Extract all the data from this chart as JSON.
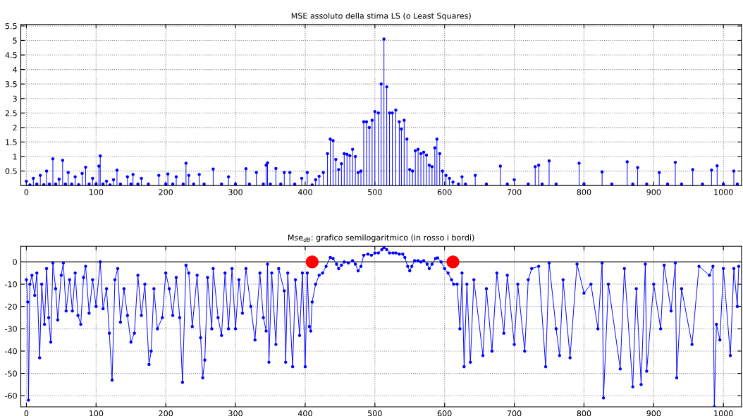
{
  "chart_data": [
    {
      "type": "lollipop",
      "title": "MSE assoluto della stima LS (o Least Squares)",
      "xlim": [
        -8,
        1026
      ],
      "ylim": [
        0,
        5.55
      ],
      "xticks": [
        0,
        100,
        200,
        300,
        400,
        500,
        600,
        700,
        800,
        900,
        1000
      ],
      "yticks": [
        0.5,
        1,
        1.5,
        2,
        2.5,
        3,
        3.5,
        4,
        4.5,
        5,
        5.5
      ],
      "grid": true,
      "marker": "circle",
      "series": [
        {
          "color": "#0000ff",
          "x": [
            0,
            5,
            10,
            15,
            20,
            25,
            29,
            33,
            38,
            42,
            47,
            52,
            56,
            60,
            65,
            70,
            75,
            80,
            85,
            90,
            95,
            100,
            104,
            106,
            110,
            115,
            120,
            125,
            130,
            135,
            145,
            150,
            153,
            160,
            165,
            175,
            190,
            200,
            203,
            210,
            215,
            225,
            229,
            233,
            240,
            248,
            255,
            268,
            280,
            290,
            300,
            315,
            320,
            330,
            340,
            344,
            346,
            350,
            358,
            365,
            370,
            378,
            385,
            395,
            403,
            410,
            415,
            420,
            426,
            432,
            436,
            440,
            444,
            448,
            452,
            456,
            460,
            464,
            468,
            472,
            476,
            480,
            484,
            488,
            492,
            496,
            500,
            505,
            509,
            513,
            517,
            521,
            525,
            530,
            535,
            538,
            542,
            546,
            550,
            554,
            558,
            562,
            566,
            570,
            574,
            578,
            582,
            586,
            589,
            593,
            597,
            602,
            607,
            612,
            620,
            625,
            630,
            644,
            660,
            680,
            690,
            700,
            720,
            730,
            735,
            740,
            750,
            760,
            793,
            800,
            826,
            840,
            862,
            870,
            877,
            890,
            908,
            920,
            931,
            940,
            956,
            970,
            983,
            991,
            1000,
            1015,
            1020
          ],
          "values": [
            0.15,
            0.02,
            0.25,
            0.05,
            0.35,
            0.03,
            0.5,
            0.05,
            0.92,
            0.05,
            0.22,
            0.87,
            0.05,
            0.45,
            0.05,
            0.3,
            0.03,
            0.42,
            0.63,
            0.05,
            0.25,
            0.05,
            0.67,
            1.02,
            0.05,
            0.15,
            0.02,
            0.2,
            0.53,
            0.05,
            0.3,
            0.05,
            0.38,
            0.05,
            0.25,
            0.05,
            0.35,
            0.05,
            0.4,
            0.05,
            0.3,
            0.05,
            0.77,
            0.35,
            0.05,
            0.38,
            0.05,
            0.57,
            0.05,
            0.3,
            0.05,
            0.58,
            0.05,
            0.45,
            0.05,
            0.7,
            0.78,
            0.05,
            0.59,
            0.05,
            0.45,
            0.45,
            0.05,
            0.25,
            0.45,
            0.02,
            0.2,
            0.32,
            0.45,
            1.1,
            1.6,
            1.55,
            0.9,
            0.55,
            0.75,
            1.1,
            1.08,
            1.03,
            1.25,
            1.0,
            0.45,
            0.5,
            2.2,
            2.2,
            2.0,
            2.25,
            2.55,
            2.5,
            3.5,
            5.05,
            3.4,
            2.5,
            2.5,
            2.6,
            2.2,
            1.95,
            2.25,
            1.6,
            0.55,
            0.5,
            1.2,
            1.25,
            1.1,
            1.15,
            1.05,
            0.7,
            0.65,
            1.3,
            1.6,
            1.1,
            0.5,
            0.35,
            0.25,
            0.12,
            0.05,
            0.3,
            0.05,
            0.35,
            0.05,
            0.67,
            0.05,
            0.2,
            0.05,
            0.65,
            0.7,
            0.05,
            0.85,
            0.05,
            0.77,
            0.05,
            0.47,
            0.05,
            0.82,
            0.05,
            0.62,
            0.05,
            0.45,
            0.05,
            0.8,
            0.05,
            0.55,
            0.05,
            0.53,
            0.68,
            0.05,
            0.5,
            0.05
          ]
        }
      ]
    },
    {
      "type": "line",
      "title": "Mse$_{dB}$: grafico semilogaritmico (in rosso i bordi)",
      "xlim": [
        -8,
        1026
      ],
      "ylim": [
        -65,
        7
      ],
      "xticks": [
        0,
        100,
        200,
        300,
        400,
        500,
        600,
        700,
        800,
        900,
        1000
      ],
      "yticks": [
        -60,
        -50,
        -40,
        -30,
        -20,
        -10,
        0
      ],
      "grid": true,
      "marker": "circle",
      "line_style": "solid",
      "ref_lines": [
        {
          "axis": "y",
          "value": 0,
          "color": "#555555",
          "line_style": "solid"
        }
      ],
      "series": [
        {
          "color": "#0000ff",
          "x": [
            0,
            2,
            3,
            5,
            8,
            12,
            15,
            19,
            22,
            26,
            29,
            32,
            35,
            38,
            42,
            45,
            50,
            53,
            57,
            62,
            66,
            70,
            74,
            78,
            82,
            85,
            90,
            95,
            100,
            106,
            110,
            115,
            119,
            123,
            127,
            131,
            135,
            140,
            145,
            150,
            155,
            160,
            165,
            170,
            176,
            179,
            183,
            188,
            195,
            200,
            205,
            210,
            215,
            220,
            224,
            229,
            233,
            238,
            245,
            250,
            253,
            256,
            260,
            266,
            268,
            275,
            280,
            285,
            290,
            295,
            300,
            305,
            310,
            315,
            322,
            328,
            335,
            340,
            344,
            346,
            348,
            352,
            358,
            362,
            370,
            372,
            375,
            382,
            386,
            392,
            396,
            400,
            403,
            406,
            408,
            410,
            415,
            420,
            425,
            430,
            436,
            440,
            445,
            448,
            452,
            456,
            462,
            468,
            472,
            476,
            480,
            484,
            490,
            495,
            500,
            505,
            510,
            513,
            517,
            521,
            526,
            530,
            535,
            540,
            543,
            547,
            550,
            553,
            557,
            562,
            566,
            570,
            575,
            578,
            582,
            587,
            590,
            595,
            600,
            605,
            610,
            613,
            618,
            622,
            625,
            628,
            632,
            637,
            642,
            655,
            660,
            668,
            675,
            685,
            690,
            700,
            705,
            715,
            720,
            725,
            735,
            745,
            750,
            760,
            765,
            770,
            780,
            790,
            800,
            810,
            820,
            826,
            828,
            835,
            852,
            858,
            870,
            875,
            882,
            888,
            890,
            900,
            910,
            915,
            925,
            931,
            933,
            940,
            955,
            965,
            980,
            985,
            987,
            990,
            995,
            1000,
            1010,
            1015,
            1020,
            1022
          ],
          "values": [
            -8,
            -18,
            -62,
            -10,
            -6,
            -15,
            -5,
            -43,
            -10,
            -28,
            -3,
            -25,
            -36,
            -0.5,
            -12,
            -26,
            -6,
            -0.5,
            -22,
            -8,
            -22,
            -5,
            -24,
            -28,
            -7,
            -2,
            -23,
            -8,
            -20,
            0,
            -21,
            -12,
            -32,
            -53,
            -8,
            -3,
            -27,
            -12,
            -24,
            -36,
            -32,
            -6,
            -24,
            -10,
            -46,
            -40,
            -12,
            -30,
            -25,
            -5,
            -12,
            -24,
            -7,
            -25,
            -54,
            -1.5,
            -5,
            -29,
            -6,
            -34,
            -52,
            -44,
            -7,
            -30,
            -3,
            -25,
            -33,
            -5,
            -30,
            -3,
            -30,
            -8,
            -23,
            -3,
            -20,
            -35,
            -5,
            -25,
            -31,
            -1,
            -45,
            -5,
            -37,
            -3,
            -13,
            -45,
            -5,
            -47,
            -8,
            -33,
            -5,
            -47,
            -5,
            -29,
            -31,
            -18,
            -10,
            -6,
            -5,
            -2,
            2,
            1.5,
            -1,
            -3,
            -1.5,
            0,
            -0.5,
            0.5,
            -1,
            -4,
            -2,
            3,
            3.5,
            3,
            4,
            4,
            5.5,
            6.5,
            5.5,
            4,
            4,
            4,
            3.5,
            3.5,
            2,
            -2,
            -4,
            -2,
            0.5,
            0.5,
            0,
            0.5,
            -1,
            -3,
            -1,
            1.5,
            1.8,
            0,
            -3,
            -5,
            -8,
            -10,
            -10,
            -30,
            -5,
            -47,
            -10,
            -45,
            -8,
            -42,
            -12,
            -40,
            -5,
            -32,
            -6,
            -37,
            -10,
            -40,
            -8,
            -3,
            -2,
            -47,
            -0.5,
            -30,
            -42,
            -8,
            -43,
            -1,
            -14,
            -10,
            -30,
            -0.5,
            -61,
            -10,
            -48,
            -3,
            -56,
            -12,
            -55,
            -1,
            -49,
            -10,
            -30,
            -1.5,
            -22,
            -0.5,
            -52,
            -12,
            -37,
            -2,
            -6,
            -2,
            -65,
            -28,
            -35,
            -3,
            -42,
            -3,
            -20,
            -2
          ]
        },
        {
          "type": "scatter",
          "color": "#ff0000",
          "x": [
            410,
            612
          ],
          "values": [
            0,
            0
          ]
        }
      ]
    }
  ]
}
